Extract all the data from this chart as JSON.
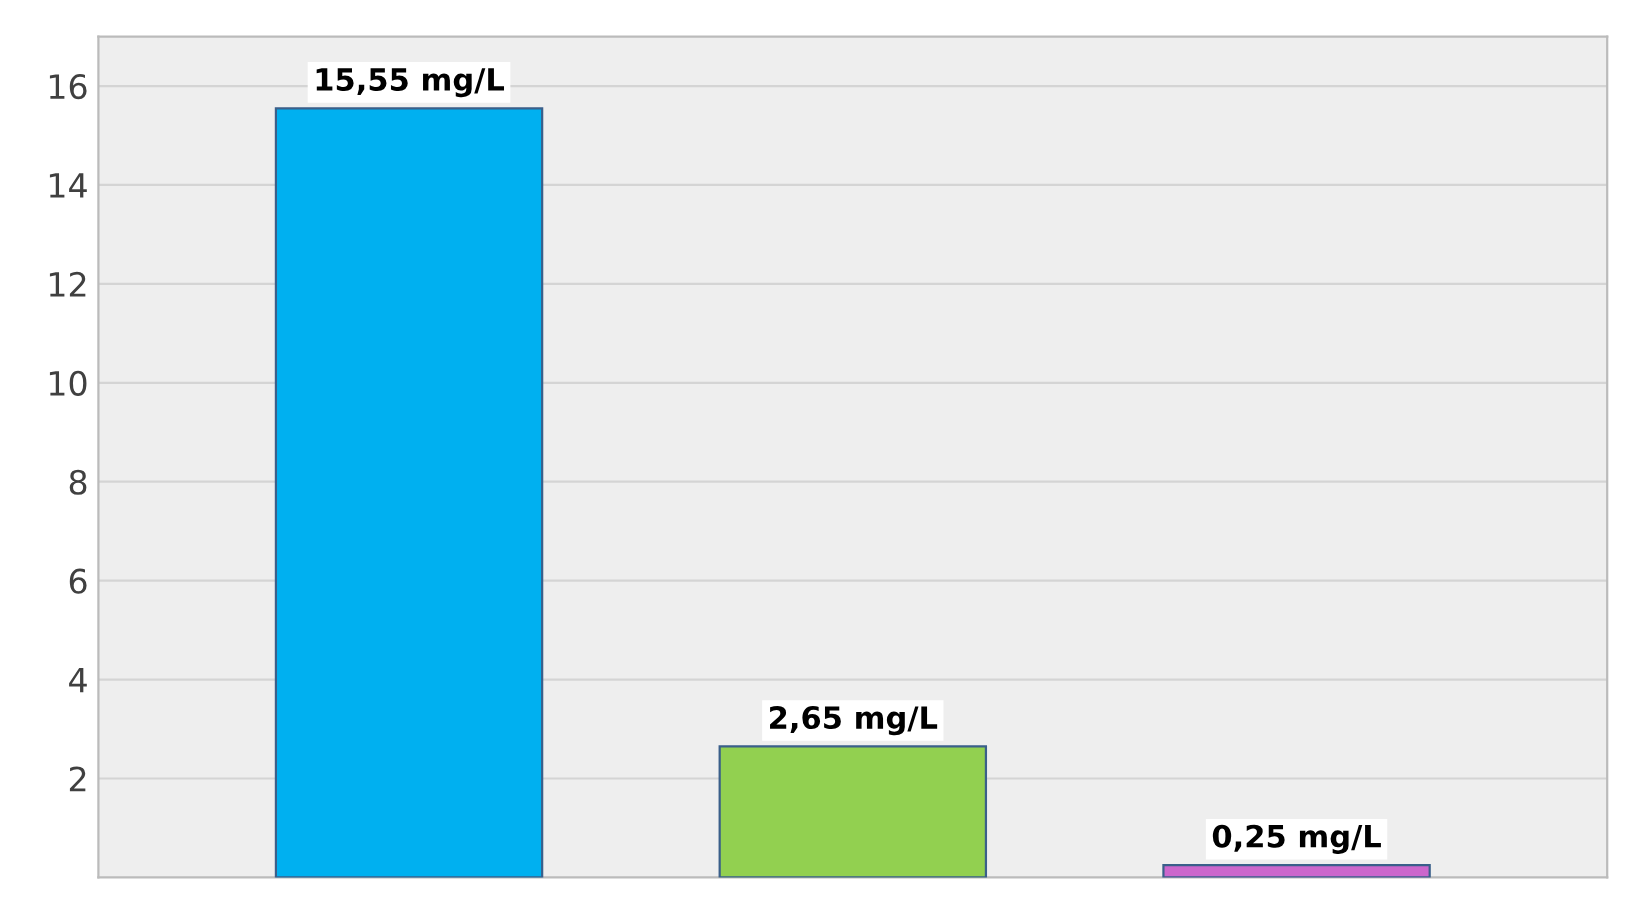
{
  "chart_data": {
    "type": "bar",
    "categories": [
      null,
      null,
      null
    ],
    "values": [
      15.55,
      2.65,
      0.25
    ],
    "colors": [
      "#00b0f0",
      "#92d050",
      "#cc66cc"
    ],
    "value_labels": [
      "15,55 mg/L",
      "2,65 mg/L",
      "0,25 mg/L"
    ],
    "ylim": [
      0,
      17
    ],
    "yticks": [
      2,
      4,
      6,
      8,
      10,
      12,
      14,
      16
    ],
    "grid": "y"
  }
}
